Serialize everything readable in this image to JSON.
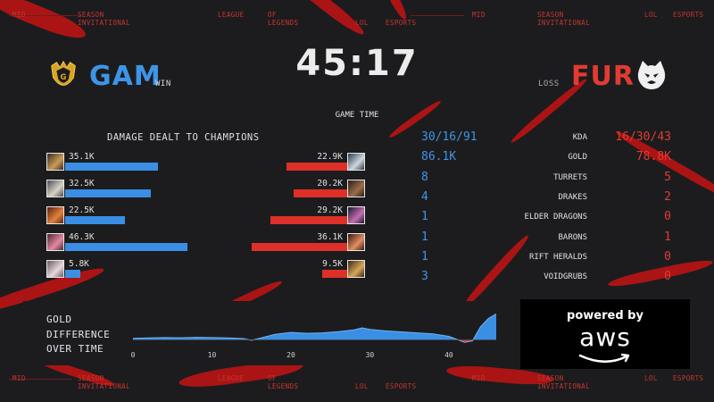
{
  "ticker": {
    "mid": "MID",
    "season": "SEASON",
    "invitational": "INVITATIONAL",
    "league": "LEAGUE",
    "of": "OF",
    "legends": "LEGENDS",
    "lol": "LOL",
    "esports": "ESPORTS"
  },
  "game": {
    "clock": "45:17",
    "clock_label": "GAME TIME"
  },
  "teams": {
    "left": {
      "name": "GAM",
      "result": "WIN",
      "color": "#3e95e8",
      "logo_icon": "gam-gold-crest-icon"
    },
    "right": {
      "name": "FUR",
      "result": "LOSS",
      "color": "#e23b32",
      "logo_icon": "fur-panther-icon"
    }
  },
  "damage": {
    "title": "DAMAGE DEALT TO CHAMPIONS",
    "max": 46.3,
    "left": [
      {
        "label": "35.1K",
        "value": 35.1
      },
      {
        "label": "32.5K",
        "value": 32.5
      },
      {
        "label": "22.5K",
        "value": 22.5
      },
      {
        "label": "46.3K",
        "value": 46.3
      },
      {
        "label": "5.8K",
        "value": 5.8
      }
    ],
    "right": [
      {
        "label": "22.9K",
        "value": 22.9
      },
      {
        "label": "20.2K",
        "value": 20.2
      },
      {
        "label": "29.2K",
        "value": 29.2
      },
      {
        "label": "36.1K",
        "value": 36.1
      },
      {
        "label": "9.5K",
        "value": 9.5
      }
    ]
  },
  "stats": [
    {
      "label": "KDA",
      "left": "30/16/91",
      "right": "16/30/43"
    },
    {
      "label": "GOLD",
      "left": "86.1K",
      "right": "78.8K"
    },
    {
      "label": "TURRETS",
      "left": "8",
      "right": "5"
    },
    {
      "label": "DRAKES",
      "left": "4",
      "right": "2"
    },
    {
      "label": "ELDER DRAGONS",
      "left": "1",
      "right": "0"
    },
    {
      "label": "BARONS",
      "left": "1",
      "right": "1"
    },
    {
      "label": "RIFT HERALDS",
      "left": "1",
      "right": "0"
    },
    {
      "label": "VOIDGRUBS",
      "left": "3",
      "right": "0"
    }
  ],
  "gold_diff": {
    "title_line1": "GOLD",
    "title_line2": "DIFFERENCE",
    "title_line3": "OVER TIME",
    "ticks": [
      "0",
      "10",
      "20",
      "30",
      "40"
    ],
    "xlim": [
      0,
      46
    ],
    "ylim": [
      -1000,
      6000
    ],
    "blue": "#3a8fe4",
    "red": "#de3028",
    "minutes": [
      0,
      2,
      4,
      6,
      8,
      10,
      12,
      14,
      15,
      16,
      17,
      18,
      20,
      22,
      24,
      26,
      28,
      29,
      30,
      32,
      34,
      36,
      38,
      40,
      41,
      42,
      43,
      44,
      45,
      46
    ],
    "values": [
      300,
      400,
      450,
      420,
      500,
      460,
      380,
      250,
      -100,
      300,
      700,
      1100,
      1500,
      1300,
      1400,
      1650,
      2000,
      2400,
      2100,
      1800,
      1600,
      1400,
      1200,
      700,
      100,
      -500,
      -200,
      2600,
      4300,
      5200
    ]
  },
  "sponsor": {
    "powered_by": "powered by",
    "brand": "aws"
  }
}
